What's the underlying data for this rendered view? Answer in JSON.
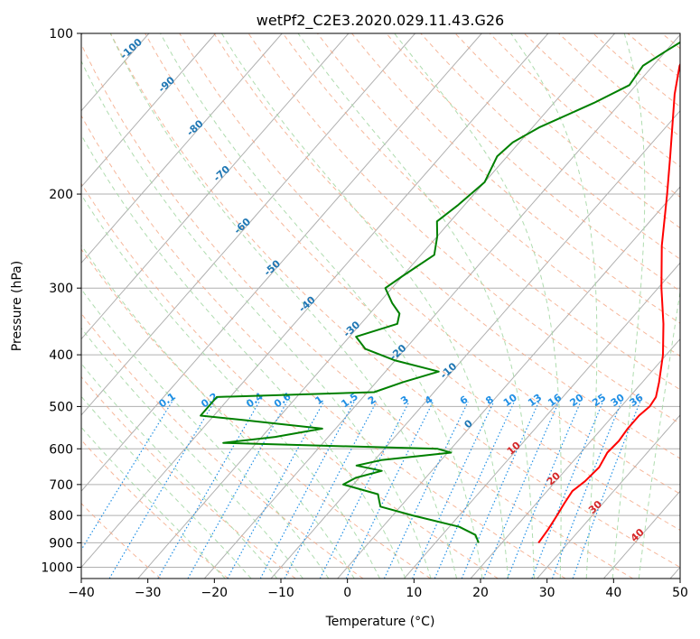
{
  "chart_data": {
    "type": "line",
    "title": "wetPf2_C2E3.2020.029.11.43.G26",
    "xlabel": "Temperature (°C)",
    "ylabel": "Pressure (hPa)",
    "xlim": [
      -40,
      50
    ],
    "ylim": [
      1050,
      100
    ],
    "y_scale": "log",
    "grid": true,
    "x_ticks": [
      -40,
      -30,
      -20,
      -10,
      0,
      10,
      20,
      30,
      40,
      50
    ],
    "y_ticks": [
      100,
      200,
      300,
      400,
      500,
      600,
      700,
      800,
      900,
      1000
    ],
    "colors": {
      "temperature": "#ff0000",
      "dewpoint": "#008000",
      "isotherm": "#b0b0b0",
      "dry_adiabat": "#f4a582",
      "moist_adiabat": "#a6d8a6",
      "mixing_ratio": "#1f8fe5",
      "label_blue": "#1f77b4",
      "label_red": "#d62728"
    },
    "isotherm_labels": [
      "-100",
      "-90",
      "-80",
      "-70",
      "-60",
      "-50",
      "-40",
      "-30",
      "-20",
      "-10",
      "0",
      "10",
      "20",
      "30",
      "40"
    ],
    "mixing_ratio_labels": [
      "0.1",
      "0.2",
      "0.4",
      "0.6",
      "1",
      "1.5",
      "2",
      "3",
      "4",
      "6",
      "8",
      "10",
      "13",
      "16",
      "20",
      "25",
      "30",
      "36"
    ],
    "series": [
      {
        "key": "temperature",
        "values": [
          {
            "p": 900,
            "t": 25.5
          },
          {
            "p": 850,
            "t": 25.2
          },
          {
            "p": 800,
            "t": 24.7
          },
          {
            "p": 760,
            "t": 24.2
          },
          {
            "p": 720,
            "t": 23.8
          },
          {
            "p": 690,
            "t": 24.4
          },
          {
            "p": 650,
            "t": 24.7
          },
          {
            "p": 610,
            "t": 24.0
          },
          {
            "p": 580,
            "t": 24.2
          },
          {
            "p": 550,
            "t": 23.9
          },
          {
            "p": 520,
            "t": 23.9
          },
          {
            "p": 500,
            "t": 24.3
          },
          {
            "p": 480,
            "t": 24.0
          },
          {
            "p": 450,
            "t": 22.5
          },
          {
            "p": 400,
            "t": 19.5
          },
          {
            "p": 350,
            "t": 15.5
          },
          {
            "p": 300,
            "t": 10.5
          },
          {
            "p": 250,
            "t": 5.0
          },
          {
            "p": 200,
            "t": -1.0
          },
          {
            "p": 170,
            "t": -5.5
          },
          {
            "p": 150,
            "t": -9.0
          },
          {
            "p": 130,
            "t": -13.0
          },
          {
            "p": 115,
            "t": -16.0
          },
          {
            "p": 100,
            "t": -18.0
          }
        ]
      },
      {
        "key": "dewpoint",
        "values": [
          {
            "p": 900,
            "t": 16.5
          },
          {
            "p": 870,
            "t": 15.0
          },
          {
            "p": 840,
            "t": 11.5
          },
          {
            "p": 800,
            "t": 3.0
          },
          {
            "p": 770,
            "t": -3.0
          },
          {
            "p": 750,
            "t": -4.0
          },
          {
            "p": 730,
            "t": -5.0
          },
          {
            "p": 700,
            "t": -11.5
          },
          {
            "p": 680,
            "t": -10.5
          },
          {
            "p": 660,
            "t": -7.5
          },
          {
            "p": 645,
            "t": -12.0
          },
          {
            "p": 630,
            "t": -9.0
          },
          {
            "p": 610,
            "t": 0.5
          },
          {
            "p": 600,
            "t": -2.0
          },
          {
            "p": 585,
            "t": -35.0
          },
          {
            "p": 570,
            "t": -28.0
          },
          {
            "p": 550,
            "t": -22.0
          },
          {
            "p": 530,
            "t": -35.0
          },
          {
            "p": 520,
            "t": -42.0
          },
          {
            "p": 480,
            "t": -42.0
          },
          {
            "p": 470,
            "t": -19.0
          },
          {
            "p": 450,
            "t": -16.0
          },
          {
            "p": 430,
            "t": -12.0
          },
          {
            "p": 410,
            "t": -20.0
          },
          {
            "p": 390,
            "t": -26.0
          },
          {
            "p": 370,
            "t": -29.0
          },
          {
            "p": 350,
            "t": -24.5
          },
          {
            "p": 335,
            "t": -25.5
          },
          {
            "p": 320,
            "t": -28.0
          },
          {
            "p": 300,
            "t": -31.0
          },
          {
            "p": 285,
            "t": -30.0
          },
          {
            "p": 260,
            "t": -28.0
          },
          {
            "p": 240,
            "t": -30.0
          },
          {
            "p": 225,
            "t": -32.0
          },
          {
            "p": 210,
            "t": -31.0
          },
          {
            "p": 190,
            "t": -30.0
          },
          {
            "p": 170,
            "t": -31.5
          },
          {
            "p": 160,
            "t": -31.0
          },
          {
            "p": 150,
            "t": -29.0
          },
          {
            "p": 135,
            "t": -24.0
          },
          {
            "p": 125,
            "t": -21.0
          },
          {
            "p": 115,
            "t": -21.5
          },
          {
            "p": 108,
            "t": -20.0
          },
          {
            "p": 100,
            "t": -18.0
          }
        ]
      }
    ]
  }
}
